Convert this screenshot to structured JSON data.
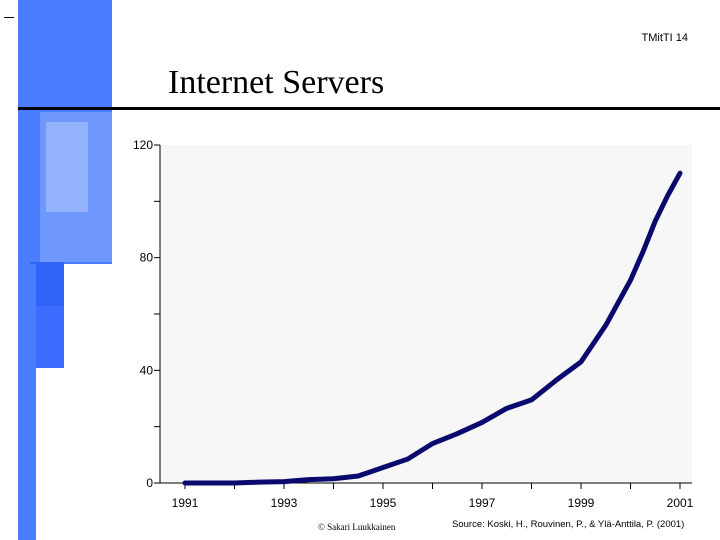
{
  "slide": {
    "label": "TMitTI 14",
    "title": "Internet Servers"
  },
  "footer": {
    "copyright": "© Sakari Luukkainen",
    "source": "Source: Koski, H., Rouvinen, P., & Ylä-Anttila, P. (2001)"
  },
  "colors": {
    "line": "#0a0a6e",
    "plot_bg": "#f7f7f7",
    "accent_blue": "#3f6fff"
  },
  "chart_data": {
    "type": "line",
    "title": "Internet Servers",
    "xlabel": "",
    "ylabel": "",
    "xlim": [
      1991,
      2001
    ],
    "ylim": [
      0,
      120
    ],
    "x_ticks": [
      1991,
      1993,
      1995,
      1997,
      1999,
      2001
    ],
    "y_ticks": [
      0,
      40,
      80,
      120
    ],
    "y_minor_ticks": [
      20,
      60,
      100
    ],
    "grid": false,
    "legend": "none",
    "series": [
      {
        "x": [
          1991,
          1991.5,
          1992,
          1992.5,
          1993,
          1993.5,
          1994,
          1994.5,
          1995,
          1995.5,
          1996,
          1996.5,
          1997,
          1997.5,
          1998,
          1998.5,
          1999,
          1999.5,
          2000,
          2000.25,
          2000.5,
          2000.75,
          2001
        ],
        "y": [
          0,
          0,
          0,
          0.3,
          0.5,
          1.2,
          1.5,
          2.5,
          5.5,
          8.5,
          14,
          17.5,
          21.5,
          26.5,
          29.5,
          36.5,
          43,
          56,
          72,
          82,
          93,
          102,
          110
        ]
      }
    ]
  }
}
